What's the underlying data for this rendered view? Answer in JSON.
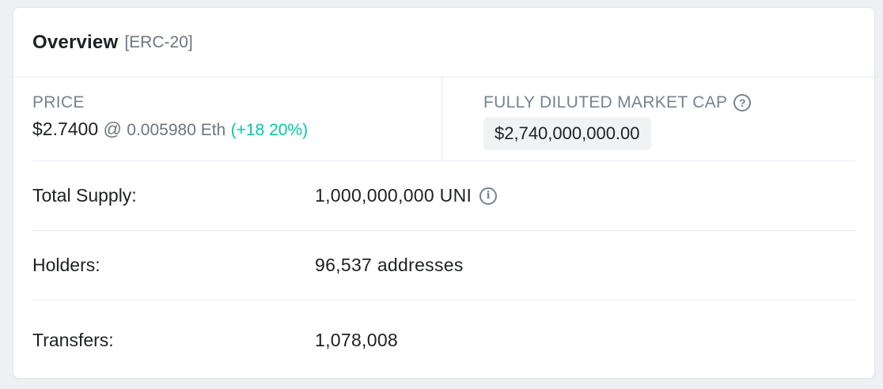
{
  "header": {
    "title": "Overview",
    "subtitle": "[ERC-20]"
  },
  "price": {
    "label": "PRICE",
    "usd": "$2.7400",
    "at": "@",
    "eth": "0.005980 Eth",
    "change": "(+18 20%)"
  },
  "market_cap": {
    "label": "FULLY DILUTED MARKET CAP",
    "value": "$2,740,000,000.00",
    "help_icon": "?"
  },
  "rows": [
    {
      "label": "Total Supply:",
      "value": "1,000,000,000 UNI",
      "info_icon": "i"
    },
    {
      "label": "Holders:",
      "value": "96,537 addresses"
    },
    {
      "label": "Transfers:",
      "value": "1,078,008"
    }
  ],
  "colors": {
    "accent_positive": "#00c9a7",
    "text": "#1e2022",
    "muted": "#77838f"
  }
}
